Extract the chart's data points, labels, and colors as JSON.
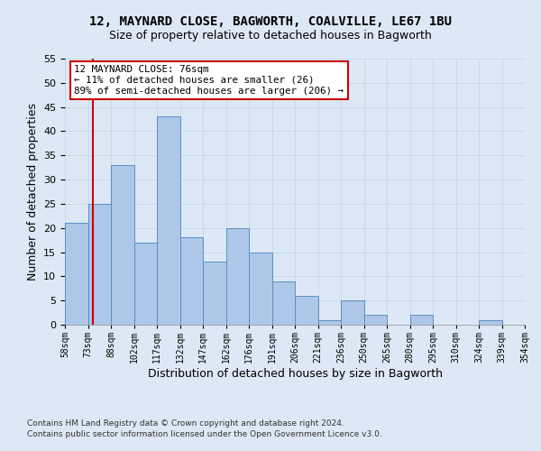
{
  "title": "12, MAYNARD CLOSE, BAGWORTH, COALVILLE, LE67 1BU",
  "subtitle": "Size of property relative to detached houses in Bagworth",
  "xlabel": "Distribution of detached houses by size in Bagworth",
  "ylabel": "Number of detached properties",
  "bar_values": [
    21,
    25,
    33,
    17,
    43,
    18,
    13,
    20,
    15,
    9,
    6,
    1,
    5,
    2,
    0,
    2,
    0,
    0,
    1,
    0
  ],
  "bin_labels": [
    "58sqm",
    "73sqm",
    "88sqm",
    "102sqm",
    "117sqm",
    "132sqm",
    "147sqm",
    "162sqm",
    "176sqm",
    "191sqm",
    "206sqm",
    "221sqm",
    "236sqm",
    "250sqm",
    "265sqm",
    "280sqm",
    "295sqm",
    "310sqm",
    "324sqm",
    "339sqm",
    "354sqm"
  ],
  "bar_color": "#aec6e8",
  "bar_edge_color": "#5a8fc2",
  "annotation_title": "12 MAYNARD CLOSE: 76sqm",
  "annotation_line1": "← 11% of detached houses are smaller (26)",
  "annotation_line2": "89% of semi-detached houses are larger (206) →",
  "annotation_box_color": "#ffffff",
  "annotation_box_edge": "#cc0000",
  "vline_color": "#cc0000",
  "vline_x": 1.2,
  "ylim": [
    0,
    55
  ],
  "yticks": [
    0,
    5,
    10,
    15,
    20,
    25,
    30,
    35,
    40,
    45,
    50,
    55
  ],
  "grid_color": "#c8d8ec",
  "background_color": "#dce8f5",
  "footer1": "Contains HM Land Registry data © Crown copyright and database right 2024.",
  "footer2": "Contains public sector information licensed under the Open Government Licence v3.0."
}
